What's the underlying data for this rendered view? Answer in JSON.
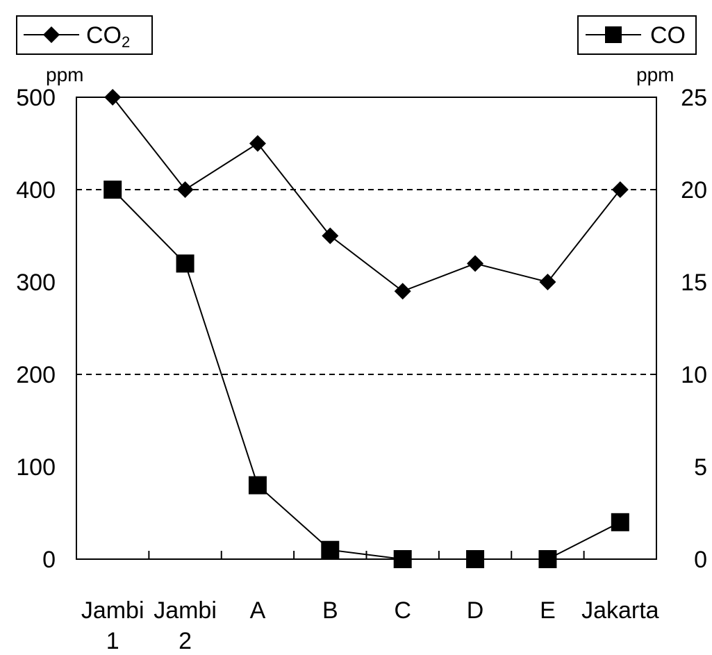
{
  "chart_data": {
    "type": "line",
    "categories": [
      [
        "Jambi",
        "1"
      ],
      [
        "Jambi",
        "2"
      ],
      [
        "A"
      ],
      [
        "B"
      ],
      [
        "C"
      ],
      [
        "D"
      ],
      [
        "E"
      ],
      [
        "Jakarta"
      ]
    ],
    "series": [
      {
        "name": "CO2",
        "name_main": "CO",
        "name_sub": "2",
        "axis": "left",
        "marker": "diamond",
        "values": [
          500,
          400,
          450,
          350,
          290,
          320,
          300,
          400
        ]
      },
      {
        "name": "CO",
        "axis": "right",
        "marker": "square",
        "values": [
          20,
          16,
          4,
          0.5,
          0,
          0,
          0,
          2
        ]
      }
    ],
    "left_axis": {
      "unit": "ppm",
      "ylim": [
        0,
        500
      ],
      "ticks": [
        0,
        100,
        200,
        300,
        400,
        500
      ]
    },
    "right_axis": {
      "unit": "ppm",
      "ylim": [
        0,
        25
      ],
      "ticks": [
        0,
        5,
        10,
        15,
        20,
        25
      ]
    },
    "gridlines": "dashed at 200 and 400",
    "legend_positions": [
      "top-left",
      "top-right"
    ],
    "colors": {
      "line": "#000000",
      "background": "#ffffff"
    }
  }
}
